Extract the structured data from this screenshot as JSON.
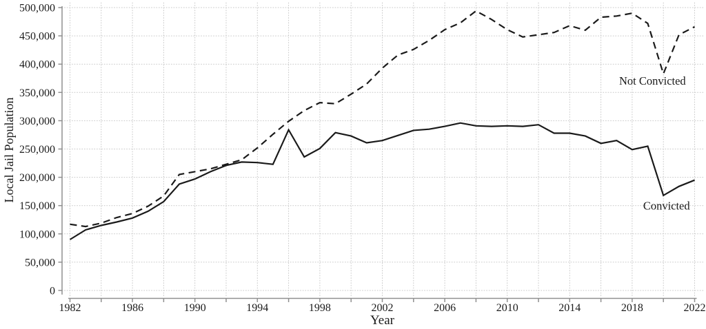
{
  "figure": {
    "ylabel": "Local Jail Population",
    "xlabel": "Year"
  },
  "axes": {
    "y_tick_labels": [
      "0",
      "50,000",
      "100,000",
      "150,000",
      "200,000",
      "250,000",
      "300,000",
      "350,000",
      "400,000",
      "450,000",
      "500,000"
    ],
    "x_tick_labels": [
      "1982",
      "1986",
      "1990",
      "1994",
      "1998",
      "2002",
      "2006",
      "2010",
      "2014",
      "2018",
      "2022"
    ]
  },
  "chart_data": {
    "type": "line",
    "xlabel": "Year",
    "ylabel": "Local Jail Population",
    "xlim": [
      1982,
      2022
    ],
    "ylim": [
      0,
      500000
    ],
    "grid": "dotted light-gray, vertical every 2 years, horizontal every 50,000",
    "legend": "inline text labels near right end of each line",
    "x": [
      1982,
      1983,
      1984,
      1985,
      1986,
      1987,
      1988,
      1989,
      1990,
      1991,
      1992,
      1993,
      1994,
      1995,
      1996,
      1997,
      1998,
      1999,
      2000,
      2001,
      2002,
      2003,
      2004,
      2005,
      2006,
      2007,
      2008,
      2009,
      2010,
      2011,
      2012,
      2013,
      2014,
      2015,
      2016,
      2017,
      2018,
      2019,
      2020,
      2021,
      2022
    ],
    "series": [
      {
        "name": "Not Convicted",
        "line_style": "dashed",
        "color": "#1a1a1a",
        "values": [
          117000,
          113000,
          119000,
          129000,
          136000,
          149000,
          167000,
          205000,
          210000,
          215000,
          223000,
          231000,
          252000,
          276000,
          299000,
          318000,
          332000,
          330000,
          347000,
          365000,
          393000,
          416000,
          426000,
          442000,
          461000,
          473000,
          494000,
          479000,
          461000,
          448000,
          452000,
          456000,
          468000,
          460000,
          483000,
          485000,
          490000,
          472000,
          383000,
          452000,
          466000
        ]
      },
      {
        "name": "Convicted",
        "line_style": "solid",
        "color": "#1a1a1a",
        "values": [
          90000,
          107000,
          115000,
          121000,
          128000,
          140000,
          157000,
          188000,
          197000,
          210000,
          221000,
          227000,
          226000,
          223000,
          284000,
          236000,
          251000,
          279000,
          273000,
          261000,
          265000,
          274000,
          283000,
          285000,
          290000,
          296000,
          291000,
          290000,
          291000,
          290000,
          293000,
          278000,
          278000,
          273000,
          260000,
          265000,
          249000,
          255000,
          168000,
          184000,
          195000
        ]
      }
    ],
    "annotations": [
      {
        "text": "Not Convicted",
        "x": 2019.3,
        "y": 370000
      },
      {
        "text": "Convicted",
        "x": 2020.2,
        "y": 149000
      }
    ]
  },
  "colors": {
    "line": "#1a1a1a",
    "grid": "#c7c7c7",
    "spine": "#8f8f8f",
    "text": "#1a1a1a",
    "background": "#ffffff"
  }
}
